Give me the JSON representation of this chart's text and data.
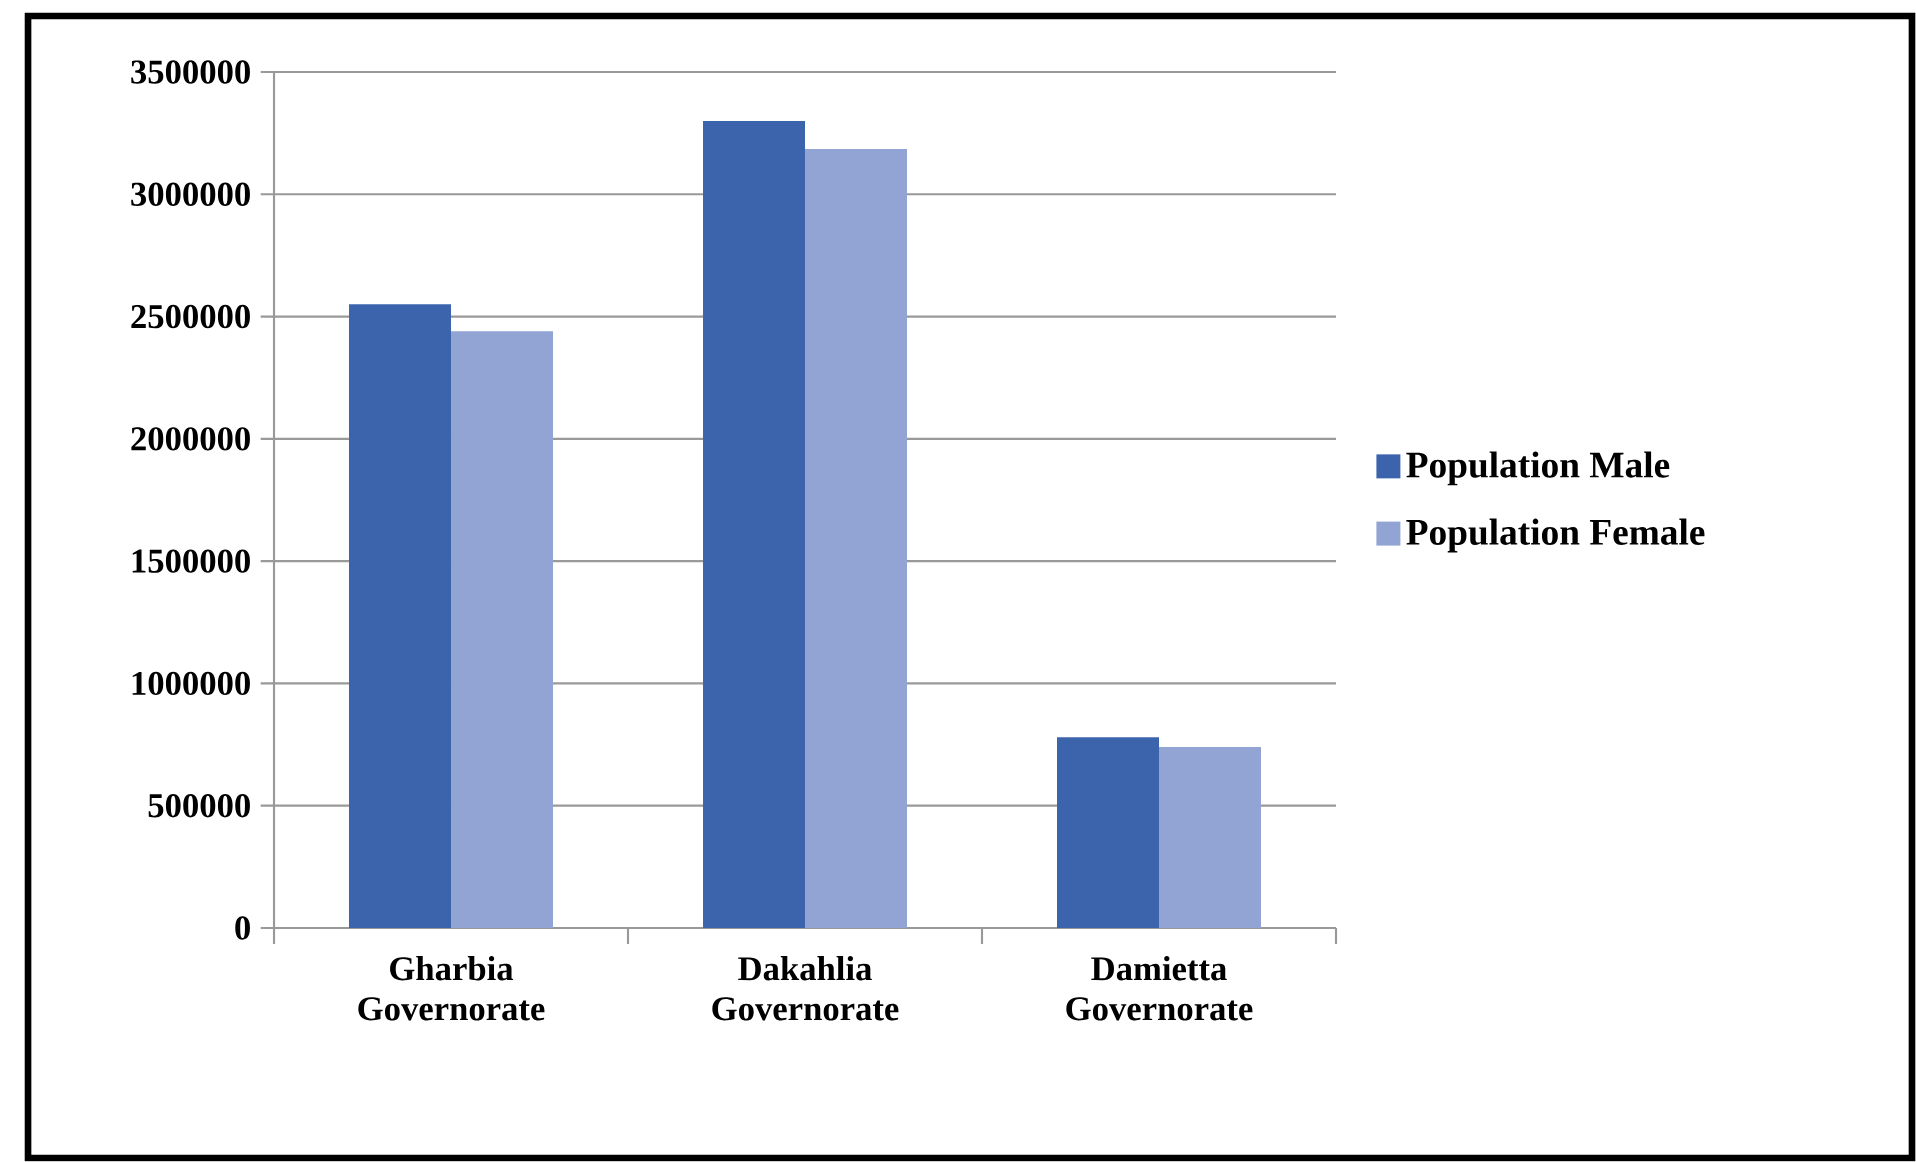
{
  "chart_data": {
    "type": "bar",
    "categories": [
      "Gharbia Governorate",
      "Dakahlia Governorate",
      "Damietta Governorate"
    ],
    "series": [
      {
        "name": "Population Male",
        "color": "#3c64ad",
        "values": [
          2550000,
          3300000,
          780000
        ]
      },
      {
        "name": "Population Female",
        "color": "#91a4d4",
        "values": [
          2440000,
          3185000,
          740000
        ]
      }
    ],
    "ylim": [
      0,
      3500000
    ],
    "yticks": [
      0,
      500000,
      1000000,
      1500000,
      2000000,
      2500000,
      3000000,
      3500000
    ],
    "grid": "y",
    "legend": "right"
  }
}
